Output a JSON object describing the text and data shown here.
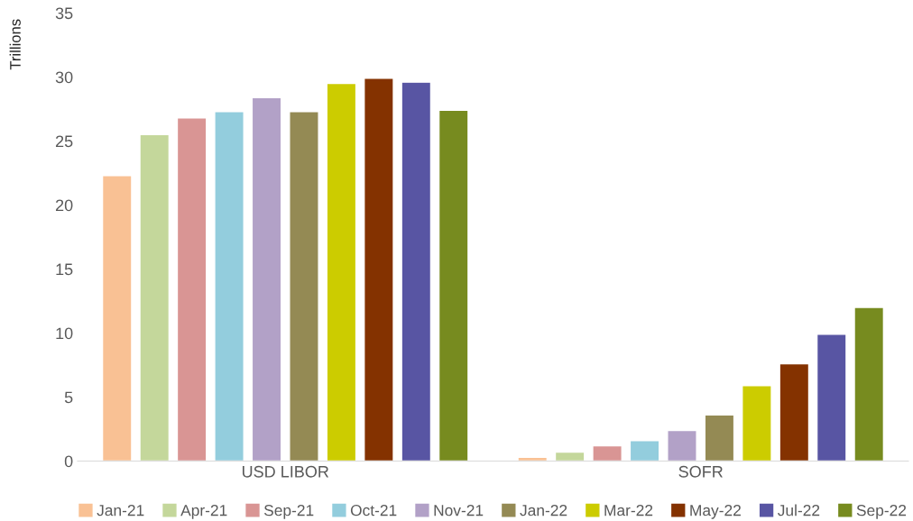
{
  "chart_data": {
    "type": "bar",
    "ylabel": "Trillions",
    "categories": [
      "USD LIBOR",
      "SOFR"
    ],
    "series": [
      {
        "name": "Jan-21",
        "color": "#f9c194",
        "values": [
          22.3,
          0.3
        ]
      },
      {
        "name": "Apr-21",
        "color": "#c4d79b",
        "values": [
          25.5,
          0.7
        ]
      },
      {
        "name": "Sep-21",
        "color": "#d99594",
        "values": [
          26.8,
          1.2
        ]
      },
      {
        "name": "Oct-21",
        "color": "#93cddd",
        "values": [
          27.3,
          1.6
        ]
      },
      {
        "name": "Nov-21",
        "color": "#b2a1c7",
        "values": [
          28.4,
          2.4
        ]
      },
      {
        "name": "Jan-22",
        "color": "#948a54",
        "values": [
          27.3,
          3.6
        ]
      },
      {
        "name": "Mar-22",
        "color": "#cccc00",
        "values": [
          29.5,
          5.9
        ]
      },
      {
        "name": "May-22",
        "color": "#843200",
        "values": [
          29.9,
          7.6
        ]
      },
      {
        "name": "Jul-22",
        "color": "#5855a3",
        "values": [
          29.6,
          9.9
        ]
      },
      {
        "name": "Sep-22",
        "color": "#778b1f",
        "values": [
          27.4,
          12.0
        ]
      }
    ],
    "ylim": [
      0,
      35
    ],
    "yticks": [
      0,
      5,
      10,
      15,
      20,
      25,
      30,
      35
    ],
    "grid": false,
    "legend": "bottom"
  }
}
